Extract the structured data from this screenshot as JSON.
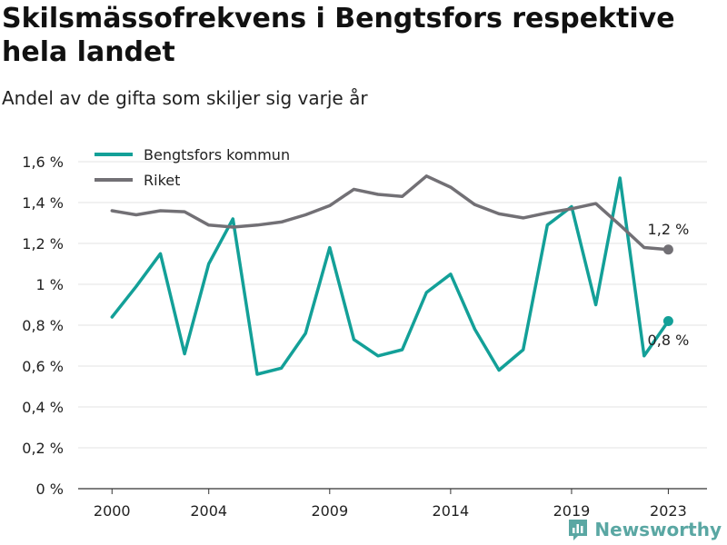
{
  "title": "Skilsmässofrekvens i Bengtsfors respektive hela landet",
  "subtitle": "Andel av de gifta som skiljer sig varje år",
  "brand": {
    "name": "Newsworthy",
    "icon": "newsworthy-logo-icon",
    "color": "#5aa7a3"
  },
  "chart_data": {
    "type": "line",
    "x": [
      2000,
      2001,
      2002,
      2003,
      2004,
      2005,
      2006,
      2007,
      2008,
      2009,
      2010,
      2011,
      2012,
      2013,
      2014,
      2015,
      2016,
      2017,
      2018,
      2019,
      2020,
      2021,
      2022,
      2023
    ],
    "x_ticks": [
      2000,
      2004,
      2009,
      2014,
      2019,
      2023
    ],
    "ylim": [
      0,
      1.6
    ],
    "y_ticks": [
      0,
      0.2,
      0.4,
      0.6,
      0.8,
      1.0,
      1.2,
      1.4,
      1.6
    ],
    "y_tick_labels": [
      "0 %",
      "0,2 %",
      "0,4 %",
      "0,6 %",
      "0,8 %",
      "1 %",
      "1,2 %",
      "1,4 %",
      "1,6 %"
    ],
    "grid": true,
    "legend_position": "top-left",
    "series": [
      {
        "name": "Bengtsfors kommun",
        "color": "#13a098",
        "values": [
          0.84,
          0.99,
          1.15,
          0.66,
          1.1,
          1.32,
          0.56,
          0.59,
          0.76,
          1.18,
          0.73,
          0.65,
          0.68,
          0.96,
          1.05,
          0.78,
          0.58,
          0.68,
          1.29,
          1.38,
          0.9,
          1.52,
          0.65,
          0.82
        ],
        "end_label": "0,8 %"
      },
      {
        "name": "Riket",
        "color": "#727075",
        "values": [
          1.36,
          1.34,
          1.36,
          1.355,
          1.29,
          1.28,
          1.29,
          1.305,
          1.34,
          1.385,
          1.465,
          1.44,
          1.43,
          1.53,
          1.475,
          1.39,
          1.345,
          1.325,
          1.35,
          1.37,
          1.395,
          1.29,
          1.18,
          1.17
        ],
        "end_label": "1,2 %"
      }
    ]
  }
}
